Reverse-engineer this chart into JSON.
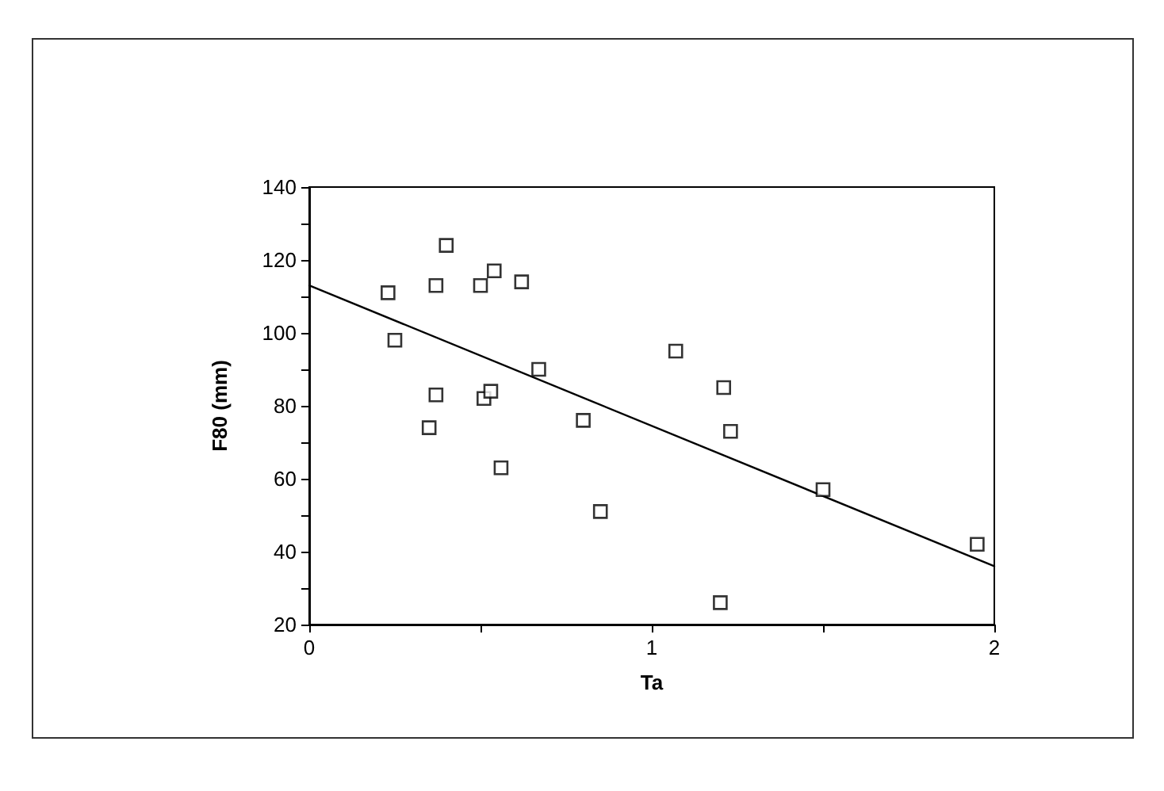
{
  "chart_data": {
    "type": "scatter",
    "xlabel": "Ta",
    "ylabel": "F80 (mm)",
    "series": [
      {
        "color": "#000000",
        "marker": "square",
        "x": [
          0.23,
          0.25,
          0.4,
          0.37,
          0.37,
          0.35,
          0.5,
          0.54,
          0.62,
          0.51,
          0.53,
          0.67,
          0.56,
          0.8,
          0.85,
          1.07,
          1.21,
          1.23,
          1.5,
          1.95,
          1.2
        ],
        "values": [
          111,
          98,
          124,
          113,
          83,
          74,
          113,
          117,
          114,
          82,
          84,
          90,
          63,
          76,
          51,
          95,
          85,
          73,
          57,
          42,
          26
        ]
      },
      {
        "type": "line",
        "color": "#000000",
        "marker": "none",
        "line_style": "solid",
        "x": [
          0,
          2
        ],
        "values": [
          113,
          36
        ]
      }
    ],
    "xlim": [
      0,
      2
    ],
    "xticks": [
      0,
      {
        "value": 0.5,
        "label": null
      },
      1,
      {
        "value": 1.5,
        "label": null
      },
      2
    ],
    "ylim": [
      20,
      140
    ],
    "yticks": [
      20,
      {
        "value": 30,
        "label": null
      },
      40,
      {
        "value": 50,
        "label": null
      },
      60,
      {
        "value": 70,
        "label": null
      },
      80,
      {
        "value": 90,
        "label": null
      },
      100,
      {
        "value": 110,
        "label": null
      },
      120,
      {
        "value": 130,
        "label": null
      },
      140
    ],
    "grid": false
  }
}
